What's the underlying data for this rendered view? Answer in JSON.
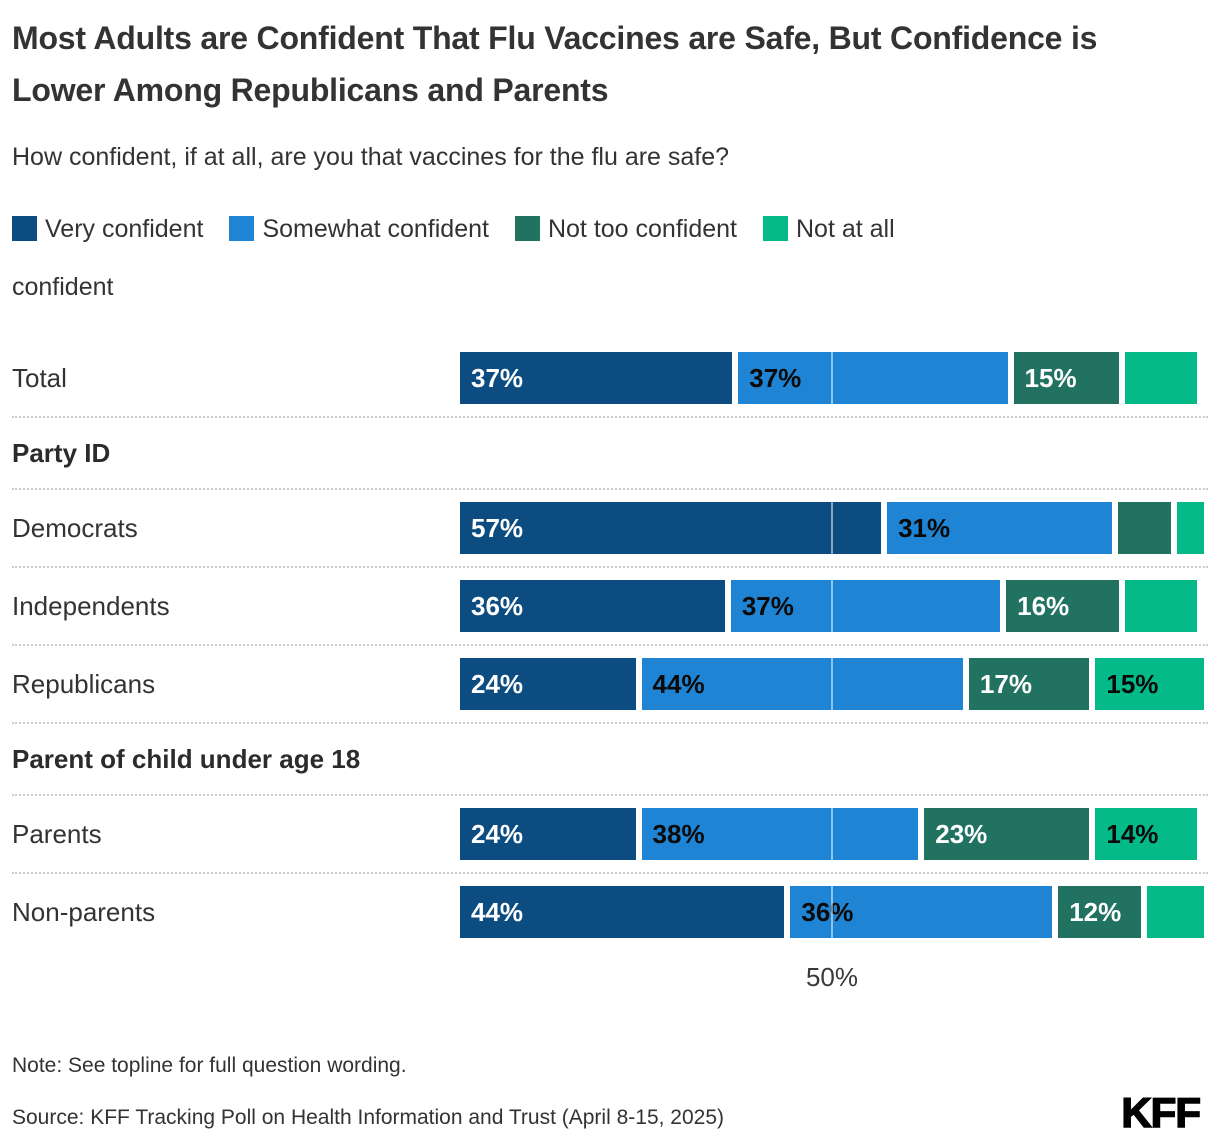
{
  "title": "Most Adults are Confident That Flu Vaccines are Safe, But Confidence is Lower Among Republicans and Parents",
  "subtitle": "How confident, if at all, are you that vaccines for the flu are safe?",
  "series": [
    {
      "name": "Very confident",
      "color": "#0C4C80",
      "label_color": "#ffffff"
    },
    {
      "name": "Somewhat confident",
      "color": "#1F84D3",
      "label_color": "#0a0a0a"
    },
    {
      "name": "Not too confident",
      "color": "#227261",
      "label_color": "#ffffff"
    },
    {
      "name": "Not at all confident",
      "color": "#03BA88",
      "label_color": "#0a0a0a"
    }
  ],
  "chart": {
    "rows": [
      {
        "type": "bar",
        "label": "Total",
        "values": [
          37,
          37,
          15,
          10
        ],
        "labels": [
          "37%",
          "37%",
          "15%",
          ""
        ]
      },
      {
        "type": "header",
        "label": "Party ID"
      },
      {
        "type": "bar",
        "label": "Democrats",
        "values": [
          57,
          31,
          8,
          4
        ],
        "labels": [
          "57%",
          "31%",
          "",
          ""
        ]
      },
      {
        "type": "bar",
        "label": "Independents",
        "values": [
          36,
          37,
          16,
          10
        ],
        "labels": [
          "36%",
          "37%",
          "16%",
          ""
        ]
      },
      {
        "type": "bar",
        "label": "Republicans",
        "values": [
          24,
          44,
          17,
          15
        ],
        "labels": [
          "24%",
          "44%",
          "17%",
          "15%"
        ]
      },
      {
        "type": "header",
        "label": "Parent of child under age 18"
      },
      {
        "type": "bar",
        "label": "Parents",
        "values": [
          24,
          38,
          23,
          14
        ],
        "labels": [
          "24%",
          "38%",
          "23%",
          "14%"
        ]
      },
      {
        "type": "bar",
        "label": "Non-parents",
        "values": [
          44,
          36,
          12,
          8
        ],
        "labels": [
          "44%",
          "36%",
          "12%",
          ""
        ]
      }
    ]
  },
  "axis": {
    "tick_label": "50%",
    "tick_value": 50
  },
  "note": "Note: See topline for full question wording.",
  "source": "Source: KFF Tracking Poll on Health Information and Trust (April 8-15, 2025)",
  "logo": "KFF",
  "chart_data": {
    "type": "bar",
    "orientation": "horizontal",
    "stacked": true,
    "title": "Most Adults are Confident That Flu Vaccines are Safe, But Confidence is Lower Among Republicans and Parents",
    "subtitle": "How confident, if at all, are you that vaccines for the flu are safe?",
    "categories": [
      "Total",
      "Democrats",
      "Independents",
      "Republicans",
      "Parents",
      "Non-parents"
    ],
    "groups": [
      {
        "name": "Party ID",
        "categories": [
          "Democrats",
          "Independents",
          "Republicans"
        ]
      },
      {
        "name": "Parent of child under age 18",
        "categories": [
          "Parents",
          "Non-parents"
        ]
      }
    ],
    "series": [
      {
        "name": "Very confident",
        "values": [
          37,
          57,
          36,
          24,
          24,
          44
        ]
      },
      {
        "name": "Somewhat confident",
        "values": [
          37,
          31,
          37,
          44,
          38,
          36
        ]
      },
      {
        "name": "Not too confident",
        "values": [
          15,
          8,
          16,
          17,
          23,
          12
        ]
      },
      {
        "name": "Not at all confident",
        "values": [
          10,
          4,
          10,
          15,
          14,
          8
        ]
      }
    ],
    "unlabeled_segments_estimated": [
      "Total/Not at all confident",
      "Democrats/Not too confident",
      "Democrats/Not at all confident",
      "Independents/Not at all confident",
      "Non-parents/Not at all confident"
    ],
    "xlabel": "",
    "ylabel": "",
    "xlim": [
      0,
      100
    ],
    "x_ticks": [
      "50%"
    ],
    "grid": "single 50% white gridline over bars",
    "legend_position": "top"
  }
}
